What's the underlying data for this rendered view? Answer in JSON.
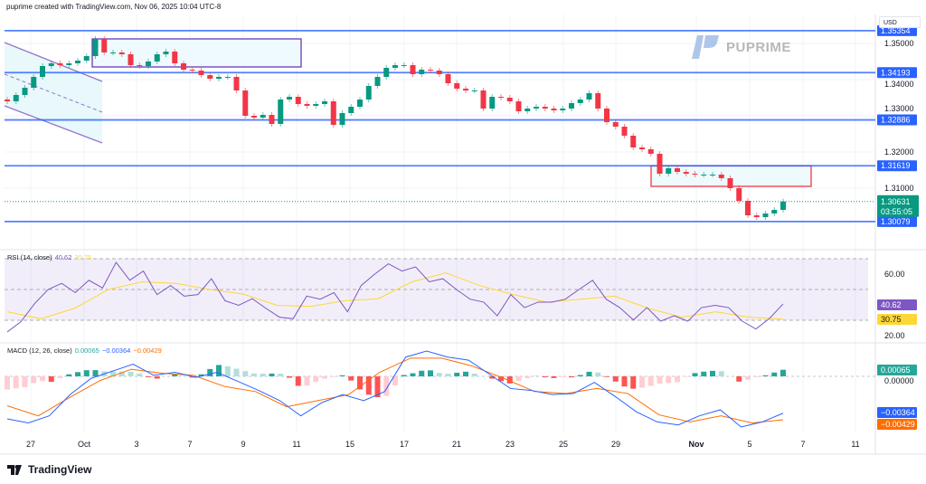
{
  "header": {
    "text": "puprime created with TradingView.com, Nov 06, 2025 10:04 UTC-8"
  },
  "currency": "USD",
  "brand": {
    "name": "PUPRIME",
    "footer": "TradingView"
  },
  "colors": {
    "up": "#089981",
    "down": "#f23645",
    "level": "#2962ff",
    "rsi": "#7e57c2",
    "rsi_ma": "#fdd835",
    "macd": "#2962ff",
    "signal": "#ff6d00",
    "zone": "#e6f7fb"
  },
  "chart_data": [
    {
      "type": "candlestick",
      "price_axis": {
        "ticks": [
          "1.35000",
          "1.34000",
          "1.33000",
          "1.32000",
          "1.31000"
        ],
        "range": [
          1.2985,
          1.3555
        ]
      },
      "time_axis": {
        "ticks": [
          "27",
          "Oct",
          "3",
          "7",
          "9",
          "11",
          "15",
          "17",
          "21",
          "23",
          "25",
          "29",
          "Nov",
          "5",
          "7",
          "11"
        ]
      },
      "closes": [
        1.334,
        1.33575,
        1.33775,
        1.34075,
        1.34375,
        1.3445,
        1.344,
        1.3445,
        1.34525,
        1.3465,
        1.35125,
        1.3475,
        1.3475,
        1.347,
        1.344,
        1.34375,
        1.345,
        1.347,
        1.34775,
        1.3445,
        1.34275,
        1.3425,
        1.34125,
        1.34025,
        1.34075,
        1.34075,
        1.337,
        1.33,
        1.3295,
        1.33025,
        1.32775,
        1.3345,
        1.33525,
        1.33325,
        1.33275,
        1.33325,
        1.334,
        1.3275,
        1.33075,
        1.3325,
        1.3345,
        1.33825,
        1.34075,
        1.34325,
        1.344,
        1.344,
        1.3415,
        1.34275,
        1.3425,
        1.3415,
        1.339,
        1.3375,
        1.337,
        1.337,
        1.332,
        1.33525,
        1.335,
        1.334,
        1.33125,
        1.332,
        1.3325,
        1.332,
        1.3315,
        1.332,
        1.3335,
        1.3345,
        1.33625,
        1.332,
        1.32825,
        1.327,
        1.3245,
        1.32125,
        1.32075,
        1.3195,
        1.314,
        1.3155,
        1.3145,
        1.314,
        1.31375,
        1.31375,
        1.31375,
        1.31275,
        1.31,
        1.3065,
        1.3025,
        1.302,
        1.303,
        1.304,
        1.30631
      ],
      "levels": [
        {
          "price": 1.35354,
          "label": "1.35354"
        },
        {
          "price": 1.34193,
          "label": "1.34193"
        },
        {
          "price": 1.32886,
          "label": "1.32886"
        },
        {
          "price": 1.31619,
          "label": "1.31619"
        },
        {
          "price": 1.30079,
          "label": "1.30079"
        }
      ],
      "current": {
        "price": 1.30631,
        "label": "1.30631",
        "countdown": "03:55:05"
      },
      "zones": [
        {
          "top": 1.35125,
          "bottom": 1.3435,
          "border": "#673ab7"
        },
        {
          "top": 1.31619,
          "bottom": 1.3105,
          "border": "#f23645"
        }
      ],
      "channel": {
        "upper": [
          1.35025,
          1.3395
        ],
        "middle": [
          1.3415,
          1.331
        ],
        "lower": [
          1.33275,
          1.3225
        ]
      }
    },
    {
      "type": "line",
      "title": "RSI (14, close)",
      "legend_values": [
        "40.62",
        "30.75"
      ],
      "axis_ticks": [
        "60.00",
        "20.00"
      ],
      "bands": {
        "upper": 70,
        "middle": 50,
        "lower": 30
      },
      "rsi": [
        22.4,
        29,
        40.7,
        50,
        54,
        48,
        56,
        51,
        67.6,
        56,
        62,
        46.7,
        52.6,
        45.7,
        46.7,
        57,
        42.7,
        39.7,
        44,
        37.8,
        32,
        31,
        45.7,
        43.7,
        48,
        35.5,
        52.6,
        60,
        66.7,
        62,
        64.7,
        55,
        57,
        50,
        43.7,
        41.8,
        32.9,
        46.7,
        38.2,
        41.8,
        41.8,
        43.7,
        50,
        56,
        43.7,
        38.2,
        30.2,
        38.2,
        29.4,
        32.9,
        29.4,
        38.2,
        39.7,
        38.2,
        29.4,
        24.3,
        31.2,
        40.62
      ],
      "rsi_ma": [
        35.5,
        31,
        37.8,
        50,
        55,
        54,
        50,
        47,
        39.7,
        39,
        42.7,
        44,
        55,
        60.8,
        52.6,
        46.7,
        41.8,
        43.7,
        45.7,
        37.8,
        32,
        35.5,
        32,
        30.75
      ],
      "last": {
        "rsi": "40.62",
        "ma": "30.75"
      }
    },
    {
      "type": "line",
      "title": "MACD (12, 26, close)",
      "legend_values": [
        "0.00065",
        "−0.00364",
        "−0.00429"
      ],
      "axis_ticks": [
        "0.00000"
      ],
      "macd": [
        -0.0042,
        -0.0046,
        -0.0039,
        -0.0018,
        -0.0002,
        0.0005,
        0.0012,
        0.0001,
        0.0004,
        -0.0001,
        0.0004,
        -0.0005,
        -0.0014,
        -0.0024,
        -0.0039,
        -0.0026,
        -0.0018,
        -0.0024,
        -0.0015,
        0.0019,
        0.0025,
        0.0019,
        0.0016,
        0.0002,
        -0.0012,
        -0.0014,
        -0.0018,
        -0.0017,
        -0.0006,
        -0.002,
        -0.0035,
        -0.0045,
        -0.0048,
        -0.0039,
        -0.0033,
        -0.005,
        -0.0045,
        -0.00364
      ],
      "signal": [
        -0.0029,
        -0.0039,
        -0.0021,
        -0.0004,
        0.0007,
        0.0003,
        0.0001,
        -0.001,
        -0.0015,
        -0.003,
        -0.0024,
        -0.0018,
        0.0004,
        0.0018,
        0.0018,
        0.001,
        -0.0002,
        -0.0015,
        -0.0017,
        -0.0012,
        -0.0017,
        -0.0038,
        -0.0045,
        -0.0039,
        -0.0046,
        -0.00429
      ],
      "last": {
        "histogram": "0.00065",
        "macd": "−0.00364",
        "signal": "−0.00429"
      }
    }
  ]
}
